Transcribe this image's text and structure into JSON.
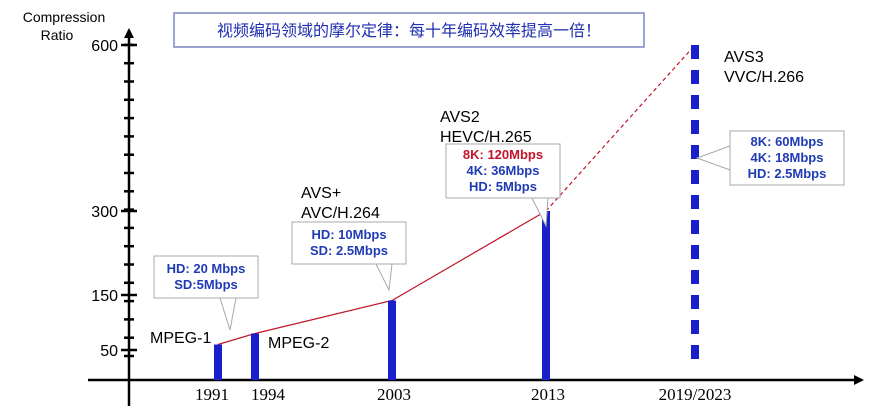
{
  "chart_data": {
    "type": "bar",
    "title": "视频编码领域的摩尔定律：每十年编码效率提高一倍！",
    "ylabel_line1": "Compression",
    "ylabel_line2": "Ratio",
    "yticks": [
      50,
      150,
      300,
      600
    ],
    "categories": [
      "1991",
      "1994",
      "2003",
      "2013",
      "2019/2023"
    ],
    "values": [
      60,
      80,
      140,
      300,
      600
    ],
    "codecs": [
      {
        "year": "1991",
        "labels": [
          "MPEG-1"
        ]
      },
      {
        "year": "1994",
        "labels": [
          "MPEG-2"
        ]
      },
      {
        "year": "2003",
        "labels": [
          "AVS+",
          "AVC/H.264"
        ]
      },
      {
        "year": "2013",
        "labels": [
          "AVS2",
          "HEVC/H.265"
        ]
      },
      {
        "year": "2019/2023",
        "labels": [
          "AVS3",
          "VVC/H.266"
        ]
      }
    ],
    "callouts": [
      {
        "year": "1994",
        "lines": [
          {
            "text": "HD: 20 Mbps",
            "color": "#1f3bb5"
          },
          {
            "text": "SD:5Mbps",
            "color": "#1f3bb5"
          }
        ]
      },
      {
        "year": "2003",
        "lines": [
          {
            "text": "HD: 10Mbps",
            "color": "#1f3bb5"
          },
          {
            "text": "SD: 2.5Mbps",
            "color": "#1f3bb5"
          }
        ]
      },
      {
        "year": "2013",
        "lines": [
          {
            "text": "8K: 120Mbps",
            "color": "#c0152a"
          },
          {
            "text": "4K: 36Mbps",
            "color": "#1f3bb5"
          },
          {
            "text": "HD: 5Mbps",
            "color": "#1f3bb5"
          }
        ]
      },
      {
        "year": "2019/2023",
        "lines": [
          {
            "text": "8K: 60Mbps",
            "color": "#1f3bb5"
          },
          {
            "text": "4K: 18Mbps",
            "color": "#1f3bb5"
          },
          {
            "text": "HD: 2.5Mbps",
            "color": "#1f3bb5"
          }
        ]
      }
    ],
    "bar_color": "#1a1fcc",
    "trend_color": "#c0152a",
    "future_bar_style": "dashed",
    "grid": false,
    "legend": "none"
  }
}
